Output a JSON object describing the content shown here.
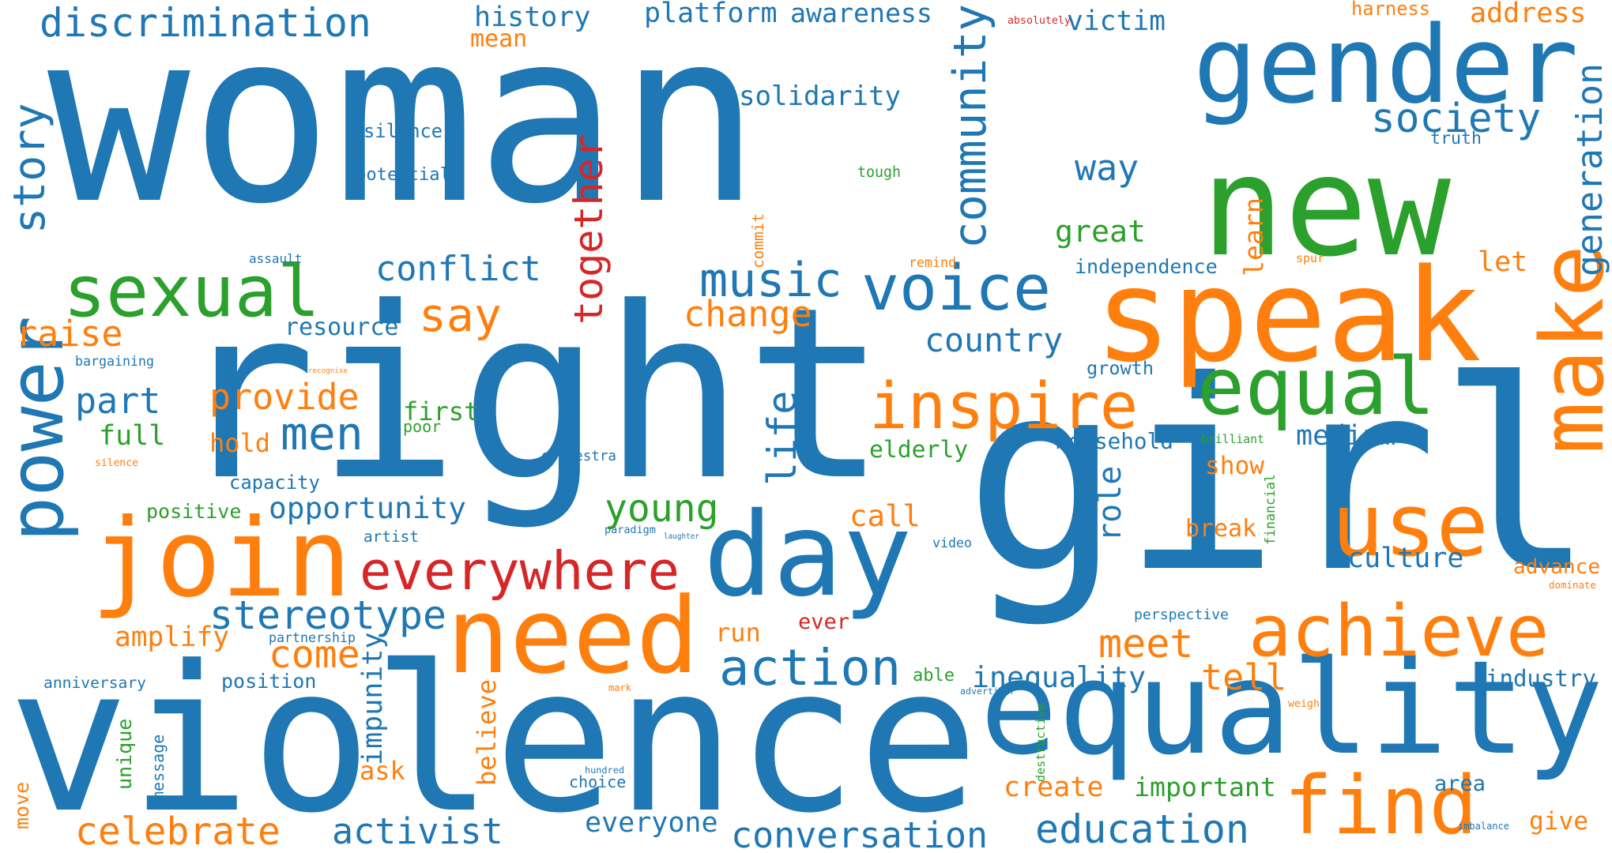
{
  "palette": {
    "blue": "#1f77b4",
    "orange": "#ff7f0e",
    "green": "#2ca02c",
    "red": "#d62728"
  },
  "words": [
    {
      "text": "woman",
      "color": "blue"
    },
    {
      "text": "right",
      "color": "blue"
    },
    {
      "text": "girl",
      "color": "blue"
    },
    {
      "text": "violence",
      "color": "blue"
    },
    {
      "text": "equality",
      "color": "blue"
    },
    {
      "text": "gender",
      "color": "blue"
    },
    {
      "text": "new",
      "color": "green"
    },
    {
      "text": "speak",
      "color": "orange"
    },
    {
      "text": "make",
      "color": "orange"
    },
    {
      "text": "need",
      "color": "orange"
    },
    {
      "text": "join",
      "color": "orange"
    },
    {
      "text": "power",
      "color": "blue"
    },
    {
      "text": "day",
      "color": "blue"
    },
    {
      "text": "use",
      "color": "orange"
    },
    {
      "text": "sexual",
      "color": "green"
    },
    {
      "text": "voice",
      "color": "blue"
    },
    {
      "text": "equal",
      "color": "green"
    },
    {
      "text": "inspire",
      "color": "orange"
    },
    {
      "text": "find",
      "color": "orange"
    },
    {
      "text": "achieve",
      "color": "orange"
    },
    {
      "text": "everywhere",
      "color": "red"
    },
    {
      "text": "action",
      "color": "blue"
    },
    {
      "text": "discrimination",
      "color": "blue"
    },
    {
      "text": "story",
      "color": "blue"
    },
    {
      "text": "community",
      "color": "blue"
    },
    {
      "text": "together",
      "color": "red"
    },
    {
      "text": "society",
      "color": "blue"
    },
    {
      "text": "generation",
      "color": "blue"
    },
    {
      "text": "music",
      "color": "blue"
    },
    {
      "text": "say",
      "color": "orange"
    },
    {
      "text": "change",
      "color": "orange"
    },
    {
      "text": "conflict",
      "color": "blue"
    },
    {
      "text": "country",
      "color": "blue"
    },
    {
      "text": "men",
      "color": "blue"
    },
    {
      "text": "raise",
      "color": "orange"
    },
    {
      "text": "part",
      "color": "blue"
    },
    {
      "text": "provide",
      "color": "orange"
    },
    {
      "text": "stereotype",
      "color": "blue"
    },
    {
      "text": "come",
      "color": "orange"
    },
    {
      "text": "meet",
      "color": "orange"
    },
    {
      "text": "tell",
      "color": "orange"
    },
    {
      "text": "young",
      "color": "green"
    },
    {
      "text": "opportunity",
      "color": "blue"
    },
    {
      "text": "celebrate",
      "color": "orange"
    },
    {
      "text": "activist",
      "color": "blue"
    },
    {
      "text": "conversation",
      "color": "blue"
    },
    {
      "text": "education",
      "color": "blue"
    },
    {
      "text": "inequality",
      "color": "blue"
    },
    {
      "text": "industry",
      "color": "blue"
    },
    {
      "text": "create",
      "color": "orange"
    },
    {
      "text": "important",
      "color": "green"
    },
    {
      "text": "everyone",
      "color": "blue"
    },
    {
      "text": "culture",
      "color": "blue"
    },
    {
      "text": "medium",
      "color": "blue"
    },
    {
      "text": "role",
      "color": "blue"
    },
    {
      "text": "life",
      "color": "blue"
    },
    {
      "text": "way",
      "color": "blue"
    },
    {
      "text": "great",
      "color": "green"
    },
    {
      "text": "learn",
      "color": "orange"
    },
    {
      "text": "history",
      "color": "blue"
    },
    {
      "text": "platform",
      "color": "blue"
    },
    {
      "text": "awareness",
      "color": "blue"
    },
    {
      "text": "victim",
      "color": "blue"
    },
    {
      "text": "address",
      "color": "orange"
    },
    {
      "text": "harness",
      "color": "orange"
    },
    {
      "text": "mean",
      "color": "orange"
    },
    {
      "text": "solidarity",
      "color": "blue"
    },
    {
      "text": "silence",
      "color": "blue"
    },
    {
      "text": "potential",
      "color": "blue"
    },
    {
      "text": "resource",
      "color": "blue"
    },
    {
      "text": "first",
      "color": "green"
    },
    {
      "text": "full",
      "color": "green"
    },
    {
      "text": "hold",
      "color": "orange"
    },
    {
      "text": "elderly",
      "color": "green"
    },
    {
      "text": "household",
      "color": "blue"
    },
    {
      "text": "show",
      "color": "orange"
    },
    {
      "text": "break",
      "color": "orange"
    },
    {
      "text": "call",
      "color": "orange"
    },
    {
      "text": "positive",
      "color": "green"
    },
    {
      "text": "capacity",
      "color": "blue"
    },
    {
      "text": "amplify",
      "color": "orange"
    },
    {
      "text": "run",
      "color": "orange"
    },
    {
      "text": "ever",
      "color": "red"
    },
    {
      "text": "position",
      "color": "blue"
    },
    {
      "text": "anniversary",
      "color": "blue"
    },
    {
      "text": "ask",
      "color": "orange"
    },
    {
      "text": "believe",
      "color": "orange"
    },
    {
      "text": "impunity",
      "color": "blue"
    },
    {
      "text": "unique",
      "color": "green"
    },
    {
      "text": "move",
      "color": "orange"
    },
    {
      "text": "choice",
      "color": "blue"
    },
    {
      "text": "area",
      "color": "blue"
    },
    {
      "text": "give",
      "color": "orange"
    },
    {
      "text": "advance",
      "color": "orange"
    },
    {
      "text": "let",
      "color": "orange"
    },
    {
      "text": "independence",
      "color": "blue"
    },
    {
      "text": "growth",
      "color": "blue"
    },
    {
      "text": "perspective",
      "color": "blue"
    },
    {
      "text": "able",
      "color": "green"
    },
    {
      "text": "tough",
      "color": "green"
    },
    {
      "text": "truth",
      "color": "blue"
    },
    {
      "text": "absolutely",
      "color": "red"
    },
    {
      "text": "assault",
      "color": "blue"
    },
    {
      "text": "remind",
      "color": "orange"
    },
    {
      "text": "spur",
      "color": "orange"
    },
    {
      "text": "commit",
      "color": "orange"
    },
    {
      "text": "bargaining",
      "color": "blue"
    },
    {
      "text": "recognise",
      "color": "orange"
    },
    {
      "text": "poor",
      "color": "green"
    },
    {
      "text": "orchestra",
      "color": "blue"
    },
    {
      "text": "brilliant",
      "color": "green"
    },
    {
      "text": "silence",
      "color": "orange"
    },
    {
      "text": "artist",
      "color": "blue"
    },
    {
      "text": "paradigm",
      "color": "blue"
    },
    {
      "text": "laughter",
      "color": "blue"
    },
    {
      "text": "video",
      "color": "blue"
    },
    {
      "text": "financial",
      "color": "green"
    },
    {
      "text": "dominate",
      "color": "orange"
    },
    {
      "text": "partnership",
      "color": "blue"
    },
    {
      "text": "mark",
      "color": "orange"
    },
    {
      "text": "advertiser",
      "color": "blue"
    },
    {
      "text": "weigh",
      "color": "orange"
    },
    {
      "text": "destructive",
      "color": "green"
    },
    {
      "text": "hundred",
      "color": "blue"
    },
    {
      "text": "message",
      "color": "blue"
    },
    {
      "text": "imbalance",
      "color": "blue"
    }
  ]
}
